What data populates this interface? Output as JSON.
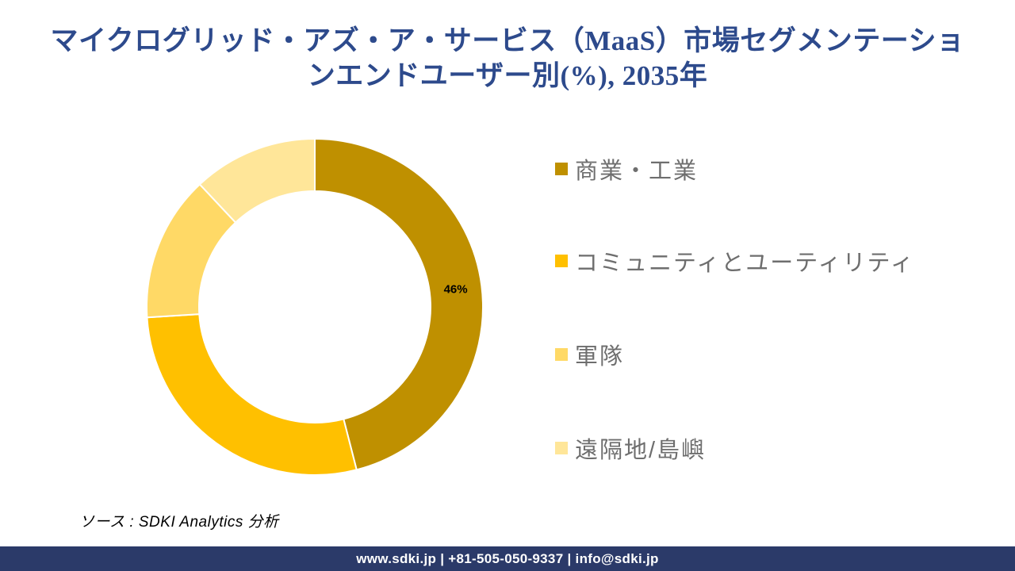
{
  "title": {
    "line1": "マイクログリッド・アズ・ア・サービス（MaaS）市場セグメンテーショ",
    "line2": "ンエンドユーザー別(%), 2035年"
  },
  "chart_data": {
    "type": "pie",
    "subtype": "donut",
    "start_angle_deg": 0,
    "direction": "clockwise",
    "inner_radius_ratio": 0.69,
    "legend_position": "right",
    "title": "マイクログリッド・アズ・ア・サービス（MaaS）市場セグメンテーション エンドユーザー別(%), 2035年",
    "segments": [
      {
        "label": "商業・工業",
        "value": 46,
        "color": "#BF9000",
        "data_label": "46%"
      },
      {
        "label": "コミュニティとユーティリティ",
        "value": 28,
        "color": "#FFC000",
        "data_label": ""
      },
      {
        "label": "軍隊",
        "value": 14,
        "color": "#FFD966",
        "data_label": ""
      },
      {
        "label": "遠隔地/島嶼",
        "value": 12,
        "color": "#FFE699",
        "data_label": ""
      }
    ]
  },
  "source": {
    "text": "ソース : SDKI Analytics 分析"
  },
  "footer": {
    "text": "www.sdki.jp | +81-505-050-9337 | info@sdki.jp"
  },
  "colors": {
    "title": "#2d4a8c",
    "legend_text": "#6e6e6e",
    "segment_border": "#ffffff",
    "data_label": "#000000",
    "footer_bg": "#2b3a69",
    "footer_text": "#ffffff"
  }
}
